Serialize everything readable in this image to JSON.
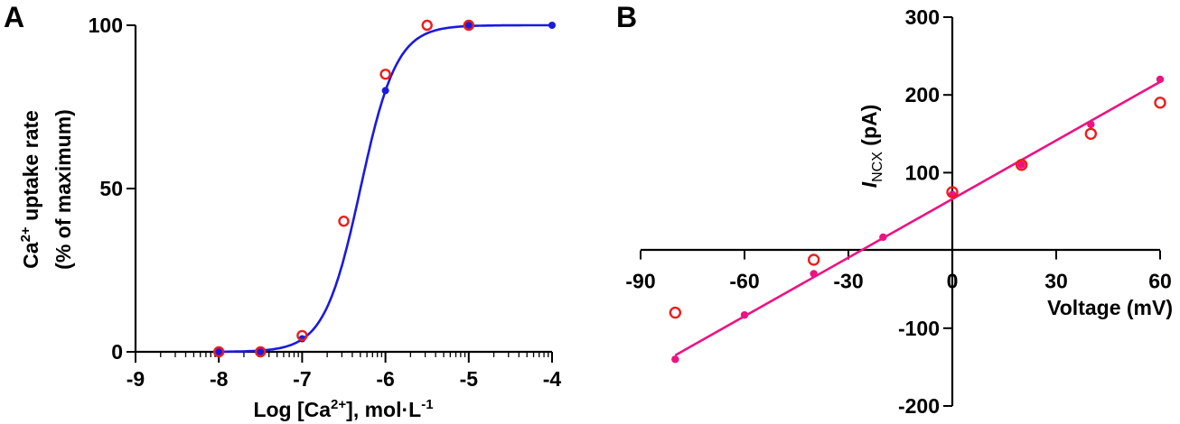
{
  "chart_data": [
    {
      "type": "line",
      "panel_label": "A",
      "xlabel": "Log [Ca2+], mol·L-1",
      "xlabel_parts": {
        "pre": "Log [Ca",
        "sup1": "2+",
        "mid": "], mol·L",
        "sup2": "-1"
      },
      "ylabel_line1_parts": {
        "pre": "Ca",
        "sup": "2+",
        "post": " uptake rate"
      },
      "ylabel_line2": "(% of maximum)",
      "xlim": [
        -9,
        -4
      ],
      "ylim": [
        0,
        100
      ],
      "xticks": [
        -9,
        -8,
        -7,
        -6,
        -5,
        -4
      ],
      "xtick_labels": [
        "-9",
        "-8",
        "-7",
        "-6",
        "-5",
        "-4"
      ],
      "yticks": [
        0,
        50,
        100
      ],
      "ytick_labels": [
        "0",
        "50",
        "100"
      ],
      "log_minor_ticks": true,
      "grid": false,
      "series": [
        {
          "color": "#1a1adf",
          "marker": "filled-circle",
          "line": "sigmoid-fit",
          "x": [
            -8,
            -7.5,
            -7,
            -6,
            -5,
            -4
          ],
          "y": [
            0,
            0,
            4,
            80,
            100,
            100
          ]
        },
        {
          "color": "#ee1c1c",
          "marker": "open-circle",
          "x": [
            -8,
            -7.5,
            -7,
            -6.5,
            -6,
            -5.5,
            -5
          ],
          "y": [
            0,
            0,
            5,
            40,
            85,
            100,
            100
          ]
        }
      ]
    },
    {
      "type": "scatter",
      "panel_label": "B",
      "xlabel": "Voltage (mV)",
      "ylabel_parts": {
        "italic": "I",
        "sub": "NCX",
        "post": " (pA)"
      },
      "xlim": [
        -90,
        60
      ],
      "ylim": [
        -200,
        300
      ],
      "xticks": [
        -90,
        -60,
        -30,
        0,
        30,
        60
      ],
      "xtick_labels": [
        "-90",
        "-60",
        "-30",
        "0",
        "30",
        "60"
      ],
      "yticks": [
        -200,
        -100,
        100,
        200,
        300
      ],
      "ytick_labels": [
        "-200",
        "-100",
        "100",
        "200",
        "300"
      ],
      "grid": false,
      "series": [
        {
          "color": "#ee1282",
          "marker": "filled-circle",
          "line": "linear-fit",
          "x": [
            -80,
            -60,
            -40,
            -20,
            0,
            20,
            40,
            60
          ],
          "y": [
            -140,
            -83,
            -30,
            17,
            72,
            110,
            162,
            220
          ]
        },
        {
          "color": "#ee1c1c",
          "marker": "open-circle",
          "x": [
            -80,
            -40,
            0,
            20,
            40,
            60
          ],
          "y": [
            -80,
            -12,
            75,
            110,
            150,
            190
          ]
        }
      ]
    }
  ]
}
